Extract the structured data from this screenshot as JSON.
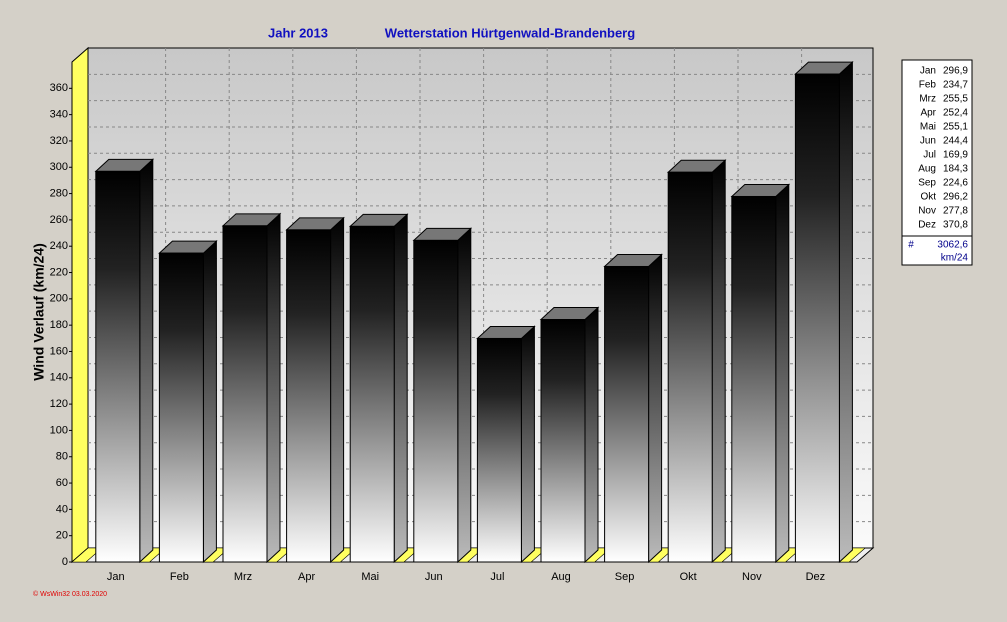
{
  "chart_data": {
    "type": "bar3d",
    "title": "Jahr  2013",
    "subtitle": "Wetterstation Hürtgenwald-Brandenberg",
    "y_label": "Wind Verlauf  (km/24)",
    "categories": [
      "Jan",
      "Feb",
      "Mrz",
      "Apr",
      "Mai",
      "Jun",
      "Jul",
      "Aug",
      "Sep",
      "Okt",
      "Nov",
      "Dez"
    ],
    "values": [
      296.9,
      234.7,
      255.5,
      252.4,
      255.1,
      244.4,
      169.9,
      184.3,
      224.6,
      296.2,
      277.8,
      370.8
    ],
    "value_labels": [
      "296,9",
      "234,7",
      "255,5",
      "252,4",
      "255,1",
      "244,4",
      "169,9",
      "184,3",
      "224,6",
      "296,2",
      "277,8",
      "370,8"
    ],
    "ylim": [
      0,
      380
    ],
    "yticks": [
      0,
      20,
      40,
      60,
      80,
      100,
      120,
      140,
      160,
      180,
      200,
      220,
      240,
      260,
      280,
      300,
      320,
      340,
      360
    ],
    "grid": true,
    "summary": {
      "symbol": "#",
      "total": {
        "value": 3062.6,
        "label": "3062,6"
      },
      "unit": "km/24"
    },
    "footer": "© WsWin32  03.03.2020"
  }
}
